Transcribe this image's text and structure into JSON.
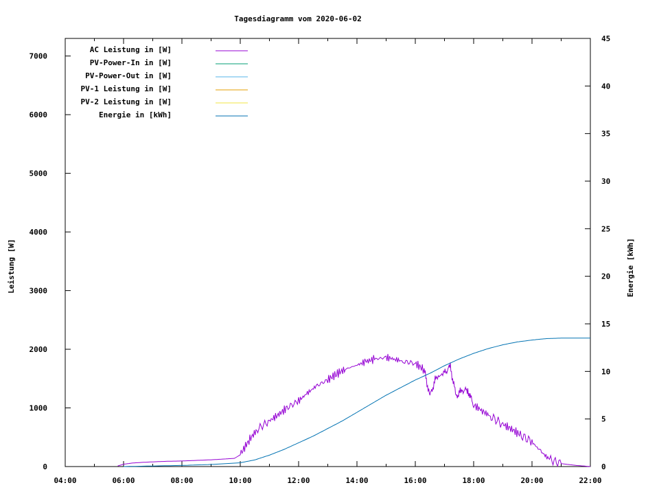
{
  "chart_data": {
    "type": "line",
    "title": "Tagesdiagramm vom 2020-06-02",
    "ylabel": "Leistung [W]",
    "y2label": "Energie [kWh]",
    "x_ticks": [
      "04:00",
      "06:00",
      "08:00",
      "10:00",
      "12:00",
      "14:00",
      "16:00",
      "18:00",
      "20:00",
      "22:00"
    ],
    "xlim_hours": [
      4,
      22
    ],
    "ylim": [
      0,
      7300
    ],
    "y_ticks": [
      0,
      1000,
      2000,
      3000,
      4000,
      5000,
      6000,
      7000
    ],
    "y2lim": [
      0,
      45
    ],
    "y2_ticks": [
      0,
      5,
      10,
      15,
      20,
      25,
      30,
      35,
      40,
      45
    ],
    "grid": false,
    "legend_position": "top-left",
    "series": [
      {
        "name": "AC Leistung in [W]",
        "color": "#9400d3",
        "axis": "left",
        "points": [
          [
            5.8,
            10
          ],
          [
            6.0,
            40
          ],
          [
            6.3,
            60
          ],
          [
            6.6,
            70
          ],
          [
            7.0,
            80
          ],
          [
            7.5,
            90
          ],
          [
            8.0,
            95
          ],
          [
            8.5,
            105
          ],
          [
            9.0,
            115
          ],
          [
            9.5,
            130
          ],
          [
            9.8,
            140
          ],
          [
            10.0,
            200
          ],
          [
            10.3,
            450
          ],
          [
            10.6,
            640
          ],
          [
            11.0,
            780
          ],
          [
            11.3,
            880
          ],
          [
            11.6,
            1000
          ],
          [
            12.0,
            1120
          ],
          [
            12.3,
            1250
          ],
          [
            12.6,
            1370
          ],
          [
            13.0,
            1480
          ],
          [
            13.3,
            1580
          ],
          [
            13.6,
            1660
          ],
          [
            14.0,
            1730
          ],
          [
            14.3,
            1790
          ],
          [
            14.6,
            1830
          ],
          [
            15.0,
            1860
          ],
          [
            15.3,
            1830
          ],
          [
            15.6,
            1790
          ],
          [
            16.0,
            1760
          ],
          [
            16.3,
            1650
          ],
          [
            16.5,
            1200
          ],
          [
            16.7,
            1500
          ],
          [
            17.0,
            1600
          ],
          [
            17.2,
            1700
          ],
          [
            17.4,
            1200
          ],
          [
            17.6,
            1300
          ],
          [
            17.8,
            1300
          ],
          [
            18.0,
            1050
          ],
          [
            18.3,
            950
          ],
          [
            18.6,
            850
          ],
          [
            19.0,
            720
          ],
          [
            19.3,
            640
          ],
          [
            19.6,
            540
          ],
          [
            20.0,
            420
          ],
          [
            20.3,
            260
          ],
          [
            20.6,
            120
          ],
          [
            21.0,
            50
          ],
          [
            21.5,
            20
          ],
          [
            22.0,
            0
          ]
        ]
      },
      {
        "name": "PV-Power-In in [W]",
        "color": "#009e73",
        "axis": "left",
        "points": []
      },
      {
        "name": "PV-Power-Out in [W]",
        "color": "#56b4e9",
        "axis": "left",
        "points": []
      },
      {
        "name": "PV-1 Leistung in [W]",
        "color": "#e69f00",
        "axis": "left",
        "points": []
      },
      {
        "name": "PV-2 Leistung in [W]",
        "color": "#f0e442",
        "axis": "left",
        "points": []
      },
      {
        "name": "Energie in [kWh]",
        "color": "#0072b2",
        "axis": "right",
        "points": [
          [
            6.0,
            0.0
          ],
          [
            8.0,
            0.12
          ],
          [
            9.0,
            0.22
          ],
          [
            10.0,
            0.4
          ],
          [
            10.5,
            0.7
          ],
          [
            11.0,
            1.2
          ],
          [
            11.5,
            1.8
          ],
          [
            12.0,
            2.5
          ],
          [
            12.5,
            3.2
          ],
          [
            13.0,
            4.0
          ],
          [
            13.5,
            4.8
          ],
          [
            14.0,
            5.7
          ],
          [
            14.5,
            6.6
          ],
          [
            15.0,
            7.5
          ],
          [
            15.5,
            8.3
          ],
          [
            16.0,
            9.1
          ],
          [
            16.5,
            9.8
          ],
          [
            17.0,
            10.6
          ],
          [
            17.5,
            11.3
          ],
          [
            18.0,
            11.9
          ],
          [
            18.5,
            12.4
          ],
          [
            19.0,
            12.8
          ],
          [
            19.5,
            13.1
          ],
          [
            20.0,
            13.3
          ],
          [
            20.5,
            13.45
          ],
          [
            21.0,
            13.5
          ],
          [
            21.5,
            13.5
          ],
          [
            22.0,
            13.5
          ]
        ]
      }
    ]
  }
}
